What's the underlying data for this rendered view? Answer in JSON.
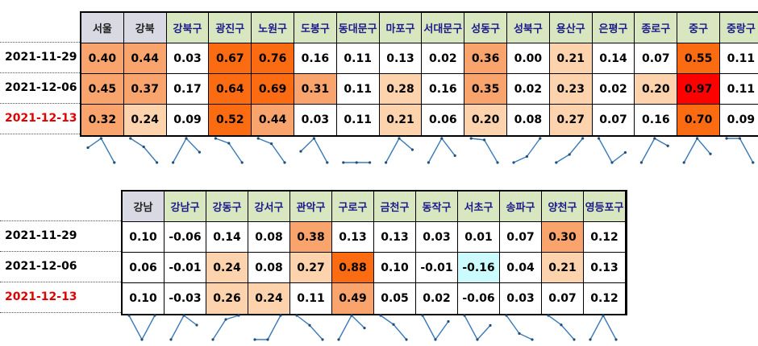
{
  "colors": {
    "header_gray": "#d9d9e3",
    "header_green": "#d8e7bf",
    "level_1": "#fcd3ac",
    "level_2": "#f9a36d",
    "level_3": "#fb6b12",
    "level_4": "#ff0000",
    "negative": "#ccfbff",
    "sparkline": "#3a7ab8",
    "date_red": "#e00000"
  },
  "dates": [
    "2021-11-29",
    "2021-12-06",
    "2021-12-13"
  ],
  "table1": {
    "headers": [
      "서울",
      "강북",
      "강북구",
      "광진구",
      "노원구",
      "도봉구",
      "동대문구",
      "마포구",
      "서대문구",
      "성동구",
      "성북구",
      "용산구",
      "은평구",
      "종로구",
      "중구",
      "중랑구"
    ],
    "header_gray": [
      true,
      true,
      false,
      false,
      false,
      false,
      false,
      false,
      false,
      false,
      false,
      false,
      false,
      false,
      false,
      false
    ],
    "rows": [
      [
        "0.40",
        "0.44",
        "0.03",
        "0.67",
        "0.76",
        "0.16",
        "0.11",
        "0.13",
        "0.02",
        "0.36",
        "0.00",
        "0.21",
        "0.14",
        "0.07",
        "0.55",
        "0.11"
      ],
      [
        "0.45",
        "0.37",
        "0.17",
        "0.64",
        "0.69",
        "0.31",
        "0.11",
        "0.28",
        "0.16",
        "0.35",
        "0.02",
        "0.23",
        "0.02",
        "0.20",
        "0.97",
        "0.11"
      ],
      [
        "0.32",
        "0.24",
        "0.09",
        "0.52",
        "0.44",
        "0.03",
        "0.11",
        "0.21",
        "0.06",
        "0.20",
        "0.08",
        "0.27",
        "0.07",
        "0.16",
        "0.70",
        "0.09"
      ]
    ]
  },
  "table2": {
    "headers": [
      "강남",
      "강남구",
      "강동구",
      "강서구",
      "관악구",
      "구로구",
      "금천구",
      "동작구",
      "서초구",
      "송파구",
      "양천구",
      "영등포구"
    ],
    "header_gray": [
      true,
      false,
      false,
      false,
      false,
      false,
      false,
      false,
      false,
      false,
      false,
      false
    ],
    "rows": [
      [
        "0.10",
        "-0.06",
        "0.14",
        "0.08",
        "0.38",
        "0.13",
        "0.13",
        "0.03",
        "0.01",
        "0.07",
        "0.30",
        "0.12"
      ],
      [
        "0.06",
        "-0.01",
        "0.24",
        "0.08",
        "0.27",
        "0.88",
        "0.10",
        "-0.01",
        "-0.16",
        "0.04",
        "0.21",
        "0.13"
      ],
      [
        "0.10",
        "-0.03",
        "0.26",
        "0.24",
        "0.11",
        "0.49",
        "0.05",
        "0.02",
        "-0.06",
        "0.03",
        "0.07",
        "0.12"
      ]
    ]
  }
}
